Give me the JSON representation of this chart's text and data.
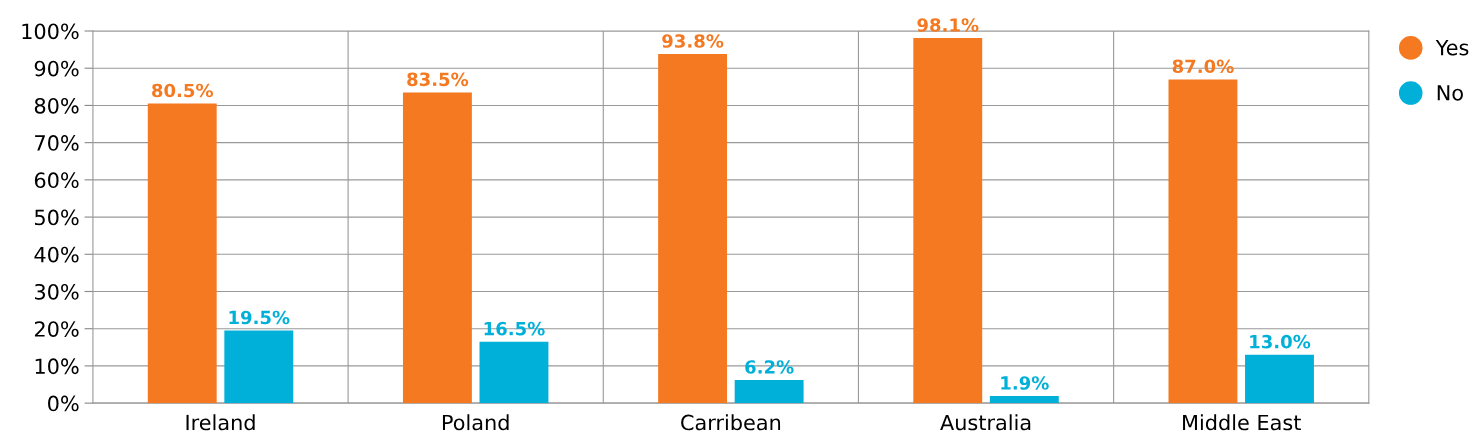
{
  "chart_data": {
    "type": "bar",
    "categories": [
      "Ireland",
      "Poland",
      "Carribean",
      "Australia",
      "Middle East"
    ],
    "series": [
      {
        "name": "Yes",
        "color": "#f47920",
        "values": [
          80.5,
          83.5,
          93.8,
          98.1,
          87.0
        ],
        "value_labels": [
          "80.5%",
          "83.5%",
          "93.8%",
          "98.1%",
          "87.0%"
        ]
      },
      {
        "name": "No",
        "color": "#00b0d8",
        "values": [
          19.5,
          16.5,
          6.2,
          1.9,
          13.0
        ],
        "value_labels": [
          "19.5%",
          "16.5%",
          "6.2%",
          "1.9%",
          "13.0%"
        ]
      }
    ],
    "ylim": [
      0,
      100
    ],
    "yticks": [
      {
        "value": 0,
        "label": "0%"
      },
      {
        "value": 10,
        "label": "10%"
      },
      {
        "value": 20,
        "label": "20%"
      },
      {
        "value": 30,
        "label": "30%"
      },
      {
        "value": 40,
        "label": "40%"
      },
      {
        "value": 50,
        "label": "50%"
      },
      {
        "value": 60,
        "label": "60%"
      },
      {
        "value": 70,
        "label": "70%"
      },
      {
        "value": 80,
        "label": "80%"
      },
      {
        "value": 90,
        "label": "90%"
      },
      {
        "value": 100,
        "label": "100%"
      }
    ],
    "grid": true,
    "legend": "top right"
  }
}
